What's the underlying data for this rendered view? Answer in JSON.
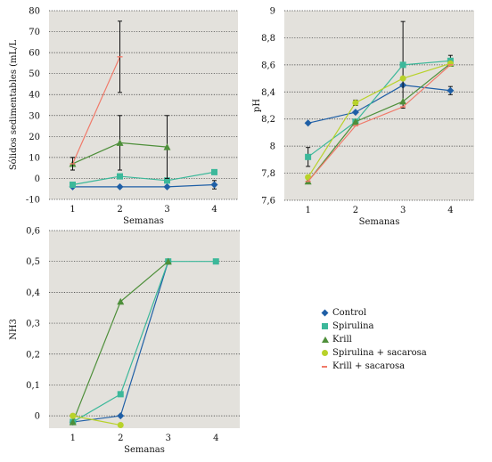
{
  "chart_data": [
    {
      "type": "line",
      "id": "solids",
      "ylabel": "Sólidos sedimentables (mL/L",
      "xlabel": "Semanas",
      "categories": [
        "1",
        "2",
        "3",
        "4"
      ],
      "yticks": [
        "-10",
        "0",
        "10",
        "20",
        "30",
        "40",
        "50",
        "60",
        "70",
        "80"
      ],
      "ylim": [
        -10,
        80
      ],
      "grid": "horizontal-dotted",
      "series": [
        {
          "name": "Control",
          "values": [
            -4,
            -4,
            -4,
            -3
          ],
          "error": [
            0,
            0,
            0,
            2
          ]
        },
        {
          "name": "Spirulina",
          "values": [
            -3,
            1,
            -1,
            3
          ],
          "error": [
            0,
            0,
            0,
            0
          ]
        },
        {
          "name": "Krill",
          "values": [
            7,
            17,
            15,
            null
          ],
          "error": [
            3,
            13,
            15,
            0
          ]
        },
        {
          "name": "Spirulina + sacarosa",
          "values": [
            null,
            null,
            null,
            null
          ],
          "error": [
            0,
            0,
            0,
            0
          ]
        },
        {
          "name": "Krill + sacarosa",
          "values": [
            7,
            58,
            null,
            null
          ],
          "error": [
            3,
            17,
            0,
            0
          ]
        }
      ]
    },
    {
      "type": "line",
      "id": "ph",
      "ylabel": "pH",
      "xlabel": "Semanas",
      "categories": [
        "1",
        "2",
        "3",
        "4"
      ],
      "yticks": [
        "7,6",
        "7,8",
        "8",
        "8,2",
        "8,4",
        "8,6",
        "8,8",
        "9"
      ],
      "ylim": [
        7.6,
        9.0
      ],
      "grid": "horizontal-dotted",
      "series": [
        {
          "name": "Control",
          "values": [
            8.17,
            8.25,
            8.45,
            8.41
          ],
          "error": [
            0,
            0,
            0,
            0.03
          ]
        },
        {
          "name": "Spirulina",
          "values": [
            7.92,
            8.18,
            8.6,
            8.63
          ],
          "error": [
            0.07,
            0,
            0.32,
            0.04
          ]
        },
        {
          "name": "Krill",
          "values": [
            7.74,
            8.18,
            8.33,
            8.61
          ],
          "error": [
            0,
            0,
            0,
            0
          ]
        },
        {
          "name": "Spirulina + sacarosa",
          "values": [
            7.77,
            8.32,
            8.5,
            8.61
          ],
          "error": [
            0,
            0.02,
            0,
            0
          ]
        },
        {
          "name": "Krill + sacarosa",
          "values": [
            7.74,
            8.15,
            8.29,
            8.6
          ],
          "error": [
            0,
            0,
            0,
            0
          ]
        }
      ]
    },
    {
      "type": "line",
      "id": "nh3",
      "ylabel": "NH3",
      "xlabel": "Semanas",
      "categories": [
        "1",
        "2",
        "3",
        "4"
      ],
      "yticks": [
        "0",
        "0,1",
        "0,2",
        "0,3",
        "0,4",
        "0,5",
        "0,6"
      ],
      "ylim": [
        -0.04,
        0.6
      ],
      "grid": "horizontal-dotted",
      "series": [
        {
          "name": "Control",
          "values": [
            -0.02,
            0.0,
            0.5,
            null
          ]
        },
        {
          "name": "Spirulina",
          "values": [
            -0.02,
            0.07,
            0.5,
            0.5
          ]
        },
        {
          "name": "Krill",
          "values": [
            -0.02,
            0.37,
            0.5,
            null
          ]
        },
        {
          "name": "Spirulina + sacarosa",
          "values": [
            0.0,
            -0.03,
            null,
            null
          ]
        },
        {
          "name": "Krill + sacarosa",
          "values": [
            null,
            null,
            null,
            null
          ]
        }
      ]
    }
  ],
  "legend": {
    "items": [
      {
        "label": "Control",
        "color": "#1f5fa6",
        "icon": "diamond"
      },
      {
        "label": "Spirulina",
        "color": "#3cb89a",
        "icon": "square"
      },
      {
        "label": "Krill",
        "color": "#4e8f3a",
        "icon": "triangle"
      },
      {
        "label": "Spirulina + sacarosa",
        "color": "#b8d22a",
        "icon": "circle"
      },
      {
        "label": "Krill + sacarosa",
        "color": "#f07a6a",
        "icon": "dash"
      }
    ]
  }
}
